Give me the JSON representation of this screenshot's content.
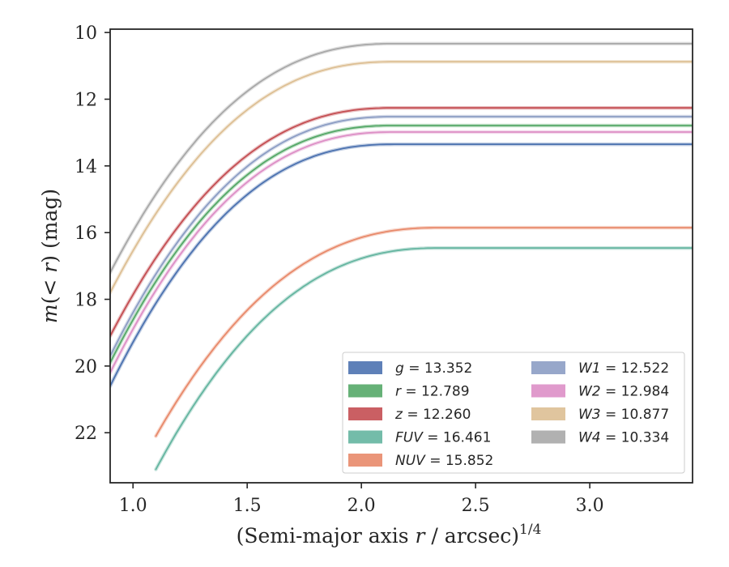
{
  "chart_data": {
    "type": "line",
    "xlabel": "(Semi-major axis r / arcsec)",
    "xlabel_parts": {
      "prefix": "(Semi-major axis ",
      "var": "r",
      "suffix": " / arcsec)",
      "exponent": "1/4"
    },
    "ylabel": "m(< r) (mag)",
    "ylabel_parts": {
      "var": "m",
      "mid": "(< ",
      "var2": "r",
      "end": ") (mag)"
    },
    "xlim": [
      0.9,
      3.45
    ],
    "ylim": [
      23.5,
      9.9
    ],
    "y_inverted": true,
    "x_ticks": [
      1.0,
      1.5,
      2.0,
      2.5,
      3.0
    ],
    "x_tick_labels": [
      "1.0",
      "1.5",
      "2.0",
      "2.5",
      "3.0"
    ],
    "y_ticks": [
      10,
      12,
      14,
      16,
      18,
      20,
      22
    ],
    "y_tick_labels": [
      "10",
      "12",
      "14",
      "16",
      "18",
      "20",
      "22"
    ],
    "grid": false,
    "legend_placement": "lower-right",
    "legend_columns": 2,
    "series": [
      {
        "name": "g",
        "label_value": "13.352",
        "color": "#4c72b0",
        "x_start": 0.9,
        "x_end": 3.45,
        "m_inf": 13.352,
        "m_start": 20.6
      },
      {
        "name": "r",
        "label_value": "12.789",
        "color": "#55a868",
        "x_start": 0.9,
        "x_end": 3.45,
        "m_inf": 12.789,
        "m_start": 19.9
      },
      {
        "name": "z",
        "label_value": "12.260",
        "color": "#c44e52",
        "x_start": 0.9,
        "x_end": 3.45,
        "m_inf": 12.26,
        "m_start": 19.1
      },
      {
        "name": "FUV",
        "label_value": "16.461",
        "color": "#64b5a0",
        "x_start": 1.1,
        "x_end": 3.45,
        "m_inf": 16.461,
        "m_start": 23.1
      },
      {
        "name": "NUV",
        "label_value": "15.852",
        "color": "#e8896a",
        "x_start": 1.1,
        "x_end": 3.45,
        "m_inf": 15.852,
        "m_start": 22.1
      },
      {
        "name": "W1",
        "label_value": "12.522",
        "color": "#8c9dc4",
        "x_start": 0.9,
        "x_end": 3.45,
        "m_inf": 12.522,
        "m_start": 19.7
      },
      {
        "name": "W2",
        "label_value": "12.984",
        "color": "#dd8fc6",
        "x_start": 0.9,
        "x_end": 3.45,
        "m_inf": 12.984,
        "m_start": 20.2
      },
      {
        "name": "W3",
        "label_value": "10.877",
        "color": "#ddbf94",
        "x_start": 0.9,
        "x_end": 3.45,
        "m_inf": 10.877,
        "m_start": 17.8
      },
      {
        "name": "W4",
        "label_value": "10.334",
        "color": "#a8a8a8",
        "x_start": 0.9,
        "x_end": 3.45,
        "m_inf": 10.334,
        "m_start": 17.2
      }
    ]
  }
}
